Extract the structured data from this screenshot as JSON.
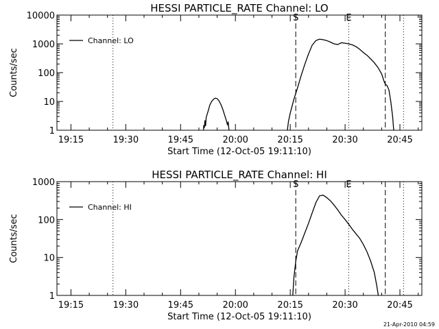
{
  "footer_timestamp": "21-Apr-2010 04:59",
  "chart_data": [
    {
      "type": "line",
      "title": "HESSI PARTICLE_RATE Channel: LO",
      "xlabel": "Start Time (12-Oct-05 19:11:10)",
      "ylabel": "Counts/sec",
      "yscale": "log",
      "ylim": [
        1,
        10000
      ],
      "y_ticks": [
        1,
        10,
        100,
        1000,
        10000
      ],
      "y_tick_labels": [
        "1",
        "10",
        "100",
        "1000",
        "10000"
      ],
      "xlim": [
        "19:11:10",
        "20:51:00"
      ],
      "x_ticks": [
        "19:15",
        "19:30",
        "19:45",
        "20:00",
        "20:15",
        "20:30",
        "20:45"
      ],
      "legend": "upper-left",
      "markers": [
        {
          "time": "19:26:30",
          "style": "dotted",
          "label": ""
        },
        {
          "time": "20:16:30",
          "style": "dashed",
          "label": "S"
        },
        {
          "time": "20:31:00",
          "style": "dotted",
          "label": "E"
        },
        {
          "time": "20:41:00",
          "style": "dashed",
          "label": ""
        },
        {
          "time": "20:46:00",
          "style": "dotted",
          "label": ""
        }
      ],
      "series": [
        {
          "name": "Channel: LO",
          "segments": [
            [
              [
                "19:51:15",
                0.9
              ],
              [
                "19:51:20",
                1.5
              ],
              [
                "19:51:30",
                1.2
              ],
              [
                "19:51:40",
                2.2
              ],
              [
                "19:51:50",
                1.4
              ],
              [
                "19:52:00",
                2.8
              ],
              [
                "19:52:30",
                4.5
              ],
              [
                "19:53:00",
                7.5
              ],
              [
                "19:53:30",
                10
              ],
              [
                "19:54:00",
                12
              ],
              [
                "19:54:30",
                13
              ],
              [
                "19:55:00",
                12.5
              ],
              [
                "19:55:30",
                10.5
              ],
              [
                "19:56:00",
                8
              ],
              [
                "19:56:30",
                5.5
              ],
              [
                "19:57:00",
                3.5
              ],
              [
                "19:57:30",
                2.2
              ],
              [
                "19:57:50",
                1.5
              ],
              [
                "19:58:00",
                2
              ],
              [
                "19:58:10",
                1.2
              ],
              [
                "19:58:20",
                0.9
              ]
            ],
            [
              [
                "20:14:10",
                0.9
              ],
              [
                "20:14:30",
                2
              ],
              [
                "20:15:00",
                4
              ],
              [
                "20:16:00",
                12
              ],
              [
                "20:17:00",
                30
              ],
              [
                "20:18:00",
                80
              ],
              [
                "20:19:00",
                200
              ],
              [
                "20:20:00",
                450
              ],
              [
                "20:21:00",
                900
              ],
              [
                "20:22:00",
                1300
              ],
              [
                "20:23:00",
                1450
              ],
              [
                "20:24:00",
                1400
              ],
              [
                "20:25:00",
                1300
              ],
              [
                "20:26:00",
                1150
              ],
              [
                "20:27:00",
                1000
              ],
              [
                "20:28:00",
                950
              ],
              [
                "20:29:00",
                1100
              ],
              [
                "20:30:00",
                1050
              ],
              [
                "20:31:00",
                1000
              ],
              [
                "20:32:00",
                920
              ],
              [
                "20:33:00",
                800
              ],
              [
                "20:34:00",
                650
              ],
              [
                "20:35:00",
                500
              ],
              [
                "20:36:00",
                400
              ],
              [
                "20:37:00",
                300
              ],
              [
                "20:38:00",
                220
              ],
              [
                "20:39:00",
                150
              ],
              [
                "20:40:00",
                90
              ],
              [
                "20:40:40",
                50
              ],
              [
                "20:41:00",
                40
              ],
              [
                "20:41:30",
                35
              ],
              [
                "20:42:00",
                25
              ],
              [
                "20:42:30",
                10
              ],
              [
                "20:43:00",
                3
              ],
              [
                "20:43:20",
                0.9
              ]
            ]
          ]
        }
      ]
    },
    {
      "type": "line",
      "title": "HESSI PARTICLE_RATE Channel: HI",
      "xlabel": "Start Time (12-Oct-05 19:11:10)",
      "ylabel": "Counts/sec",
      "yscale": "log",
      "ylim": [
        1,
        1000
      ],
      "y_ticks": [
        1,
        10,
        100,
        1000
      ],
      "y_tick_labels": [
        "1",
        "10",
        "100",
        "1000"
      ],
      "xlim": [
        "19:11:10",
        "20:51:00"
      ],
      "x_ticks": [
        "19:15",
        "19:30",
        "19:45",
        "20:00",
        "20:15",
        "20:30",
        "20:45"
      ],
      "legend": "upper-left",
      "markers": [
        {
          "time": "19:26:30",
          "style": "dotted",
          "label": ""
        },
        {
          "time": "20:16:30",
          "style": "dashed",
          "label": "S"
        },
        {
          "time": "20:31:00",
          "style": "dotted",
          "label": "E"
        },
        {
          "time": "20:41:00",
          "style": "dashed",
          "label": ""
        },
        {
          "time": "20:46:00",
          "style": "dotted",
          "label": ""
        }
      ],
      "series": [
        {
          "name": "Channel: HI",
          "segments": [
            [
              [
                "20:15:40",
                0.9
              ],
              [
                "20:16:00",
                3
              ],
              [
                "20:16:30",
                8
              ],
              [
                "20:17:00",
                15
              ],
              [
                "20:18:00",
                25
              ],
              [
                "20:19:00",
                45
              ],
              [
                "20:20:00",
                80
              ],
              [
                "20:21:00",
                150
              ],
              [
                "20:22:00",
                280
              ],
              [
                "20:23:00",
                420
              ],
              [
                "20:24:00",
                440
              ],
              [
                "20:25:00",
                380
              ],
              [
                "20:26:00",
                310
              ],
              [
                "20:27:00",
                240
              ],
              [
                "20:28:00",
                180
              ],
              [
                "20:29:00",
                130
              ],
              [
                "20:30:00",
                100
              ],
              [
                "20:31:00",
                75
              ],
              [
                "20:32:00",
                55
              ],
              [
                "20:33:00",
                42
              ],
              [
                "20:34:00",
                32
              ],
              [
                "20:35:00",
                22
              ],
              [
                "20:36:00",
                14
              ],
              [
                "20:37:00",
                8
              ],
              [
                "20:38:00",
                4
              ],
              [
                "20:38:40",
                1.8
              ],
              [
                "20:39:10",
                0.9
              ]
            ]
          ]
        }
      ]
    }
  ]
}
